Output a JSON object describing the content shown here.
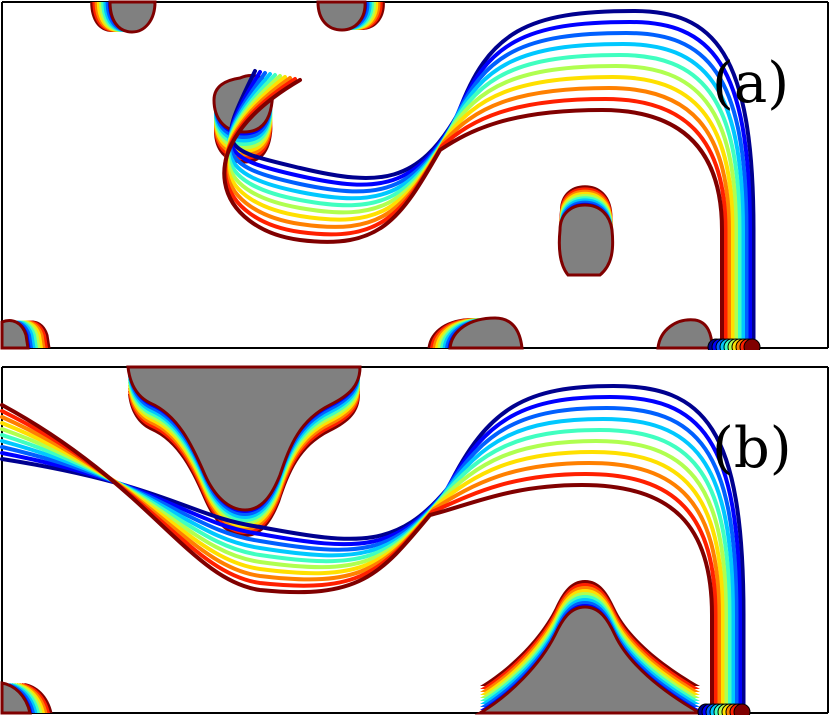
{
  "figure": {
    "panels": [
      {
        "label": "(a)"
      },
      {
        "label": "(b)"
      }
    ],
    "colors": {
      "body_fill": "#808080",
      "frame": "#000000",
      "background": "#ffffff",
      "streamline_palette": [
        "#00008f",
        "#0000ff",
        "#0060ff",
        "#00c8ff",
        "#40ffc0",
        "#b0ff50",
        "#ffe000",
        "#ff8000",
        "#ff2000",
        "#800000"
      ]
    }
  }
}
